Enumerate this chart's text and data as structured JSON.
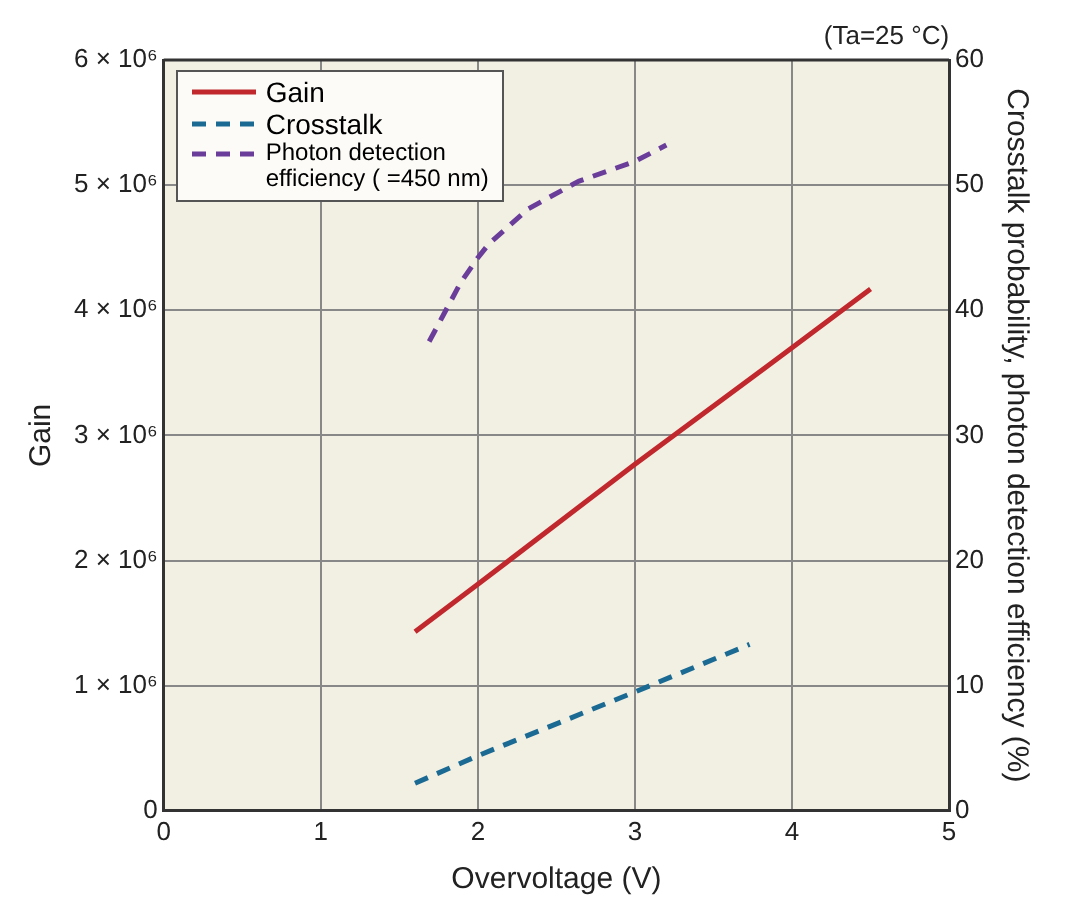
{
  "chart_data": {
    "type": "line",
    "xlabel": "Overvoltage (V)",
    "ylabel": "Gain",
    "y2label": "Crosstalk probability, photon detection efficiency (%)",
    "annotations": [
      "(Ta=25 °C)"
    ],
    "xlim": [
      0,
      5
    ],
    "xticks": [
      0,
      1,
      2,
      3,
      4,
      5
    ],
    "ylim": [
      0,
      6000000
    ],
    "yticks": [
      0,
      {
        "value": 1000000,
        "label": "1 × 10⁶"
      },
      {
        "value": 2000000,
        "label": "2 × 10⁶"
      },
      {
        "value": 3000000,
        "label": "3 × 10⁶"
      },
      {
        "value": 4000000,
        "label": "4 × 10⁶"
      },
      {
        "value": 5000000,
        "label": "5 × 10⁶"
      },
      {
        "value": 6000000,
        "label": "6 × 10⁶"
      }
    ],
    "y2lim": [
      0,
      60
    ],
    "y2ticks": [
      0,
      10,
      20,
      30,
      40,
      50,
      60
    ],
    "grid": true,
    "legend": "top left",
    "marker": "none",
    "series": [
      {
        "name": "Gain",
        "color": "#c0282d",
        "line_style": "solid",
        "x": [
          1.6,
          2,
          3,
          4,
          4.5
        ],
        "values": [
          1430000,
          1810000,
          2770000,
          3700000,
          4170000
        ]
      },
      {
        "name": "Crosstalk",
        "color": "#1a6a94",
        "line_style": "dashed",
        "axis": "y2",
        "x": [
          1.6,
          2,
          3,
          3.73
        ],
        "values": [
          2.2,
          4.4,
          9.5,
          13.3
        ]
      },
      {
        "name": "Photon detection efficiency (  =450 nm)",
        "color": "#6a3d9a",
        "line_style": "dashed",
        "axis": "y2",
        "x": [
          1.69,
          1.89,
          2,
          2.07,
          2.32,
          2.64,
          3,
          3.2
        ],
        "values": [
          37.5,
          42.2,
          44.2,
          45.3,
          48.1,
          50.3,
          51.9,
          53.2
        ]
      }
    ]
  }
}
